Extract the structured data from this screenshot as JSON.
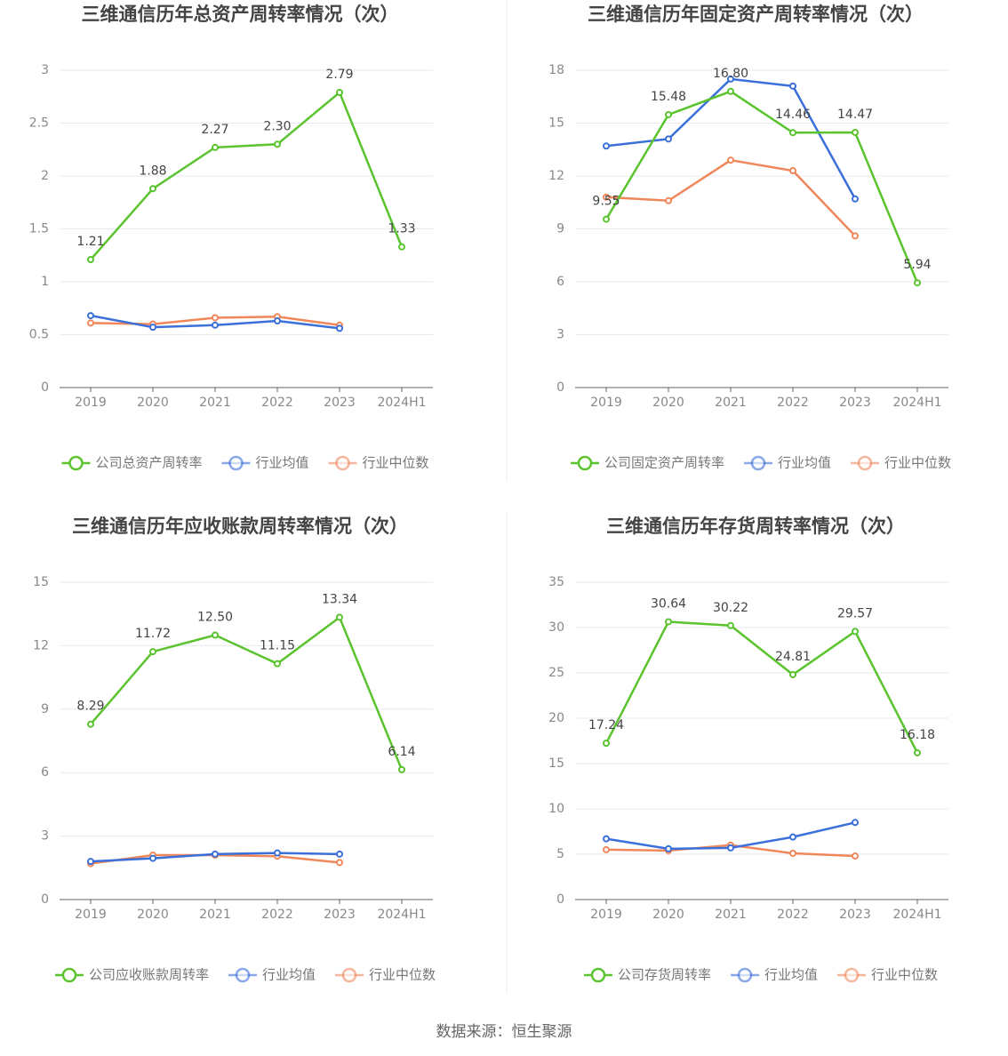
{
  "chart_data": [
    {
      "type": "line",
      "title": "三维通信历年总资产周转率情况（次）",
      "categories": [
        "2019",
        "2020",
        "2021",
        "2022",
        "2023",
        "2024H1"
      ],
      "ylim": [
        0,
        3
      ],
      "yticks": [
        0,
        0.5,
        1,
        1.5,
        2,
        2.5,
        3
      ],
      "grid": true,
      "series": [
        {
          "name": "公司总资产周转率",
          "color": "#5bc32e",
          "values": [
            1.21,
            1.88,
            2.27,
            2.3,
            2.79,
            1.33
          ],
          "value_labels": [
            "1.21",
            "1.88",
            "2.27",
            "2.30",
            "2.79",
            "1.33"
          ]
        },
        {
          "name": "行业均值",
          "color": "#3b6fd9",
          "values": [
            0.68,
            0.57,
            0.59,
            0.63,
            0.56,
            null
          ]
        },
        {
          "name": "行业中位数",
          "color": "#f0875a",
          "values": [
            0.61,
            0.6,
            0.66,
            0.67,
            0.59,
            null
          ]
        }
      ]
    },
    {
      "type": "line",
      "title": "三维通信历年固定资产周转率情况（次）",
      "categories": [
        "2019",
        "2020",
        "2021",
        "2022",
        "2023",
        "2024H1"
      ],
      "ylim": [
        0,
        18
      ],
      "yticks": [
        0,
        3,
        6,
        9,
        12,
        15,
        18
      ],
      "grid": true,
      "series": [
        {
          "name": "公司固定资产周转率",
          "color": "#5bc32e",
          "values": [
            9.55,
            15.48,
            16.8,
            14.46,
            14.47,
            5.94
          ],
          "value_labels": [
            "9.55",
            "15.48",
            "16.80",
            "14.46",
            "14.47",
            "5.94"
          ]
        },
        {
          "name": "行业均值",
          "color": "#3b6fd9",
          "values": [
            13.7,
            14.1,
            17.5,
            17.1,
            10.7,
            null
          ]
        },
        {
          "name": "行业中位数",
          "color": "#f0875a",
          "values": [
            10.8,
            10.6,
            12.9,
            12.3,
            8.6,
            null
          ]
        }
      ]
    },
    {
      "type": "line",
      "title": "三维通信历年应收账款周转率情况（次）",
      "categories": [
        "2019",
        "2020",
        "2021",
        "2022",
        "2023",
        "2024H1"
      ],
      "ylim": [
        0,
        15
      ],
      "yticks": [
        0,
        3,
        6,
        9,
        12,
        15
      ],
      "grid": true,
      "series": [
        {
          "name": "公司应收账款周转率",
          "color": "#5bc32e",
          "values": [
            8.29,
            11.72,
            12.5,
            11.15,
            13.34,
            6.14
          ],
          "value_labels": [
            "8.29",
            "11.72",
            "12.50",
            "11.15",
            "13.34",
            "6.14"
          ]
        },
        {
          "name": "行业均值",
          "color": "#3b6fd9",
          "values": [
            1.8,
            1.95,
            2.15,
            2.2,
            2.15,
            null
          ]
        },
        {
          "name": "行业中位数",
          "color": "#f0875a",
          "values": [
            1.7,
            2.1,
            2.1,
            2.05,
            1.75,
            null
          ]
        }
      ]
    },
    {
      "type": "line",
      "title": "三维通信历年存货周转率情况（次）",
      "categories": [
        "2019",
        "2020",
        "2021",
        "2022",
        "2023",
        "2024H1"
      ],
      "ylim": [
        0,
        35
      ],
      "yticks": [
        0,
        5,
        10,
        15,
        20,
        25,
        30,
        35
      ],
      "grid": true,
      "series": [
        {
          "name": "公司存货周转率",
          "color": "#5bc32e",
          "values": [
            17.24,
            30.64,
            30.22,
            24.81,
            29.57,
            16.18
          ],
          "value_labels": [
            "17.24",
            "30.64",
            "30.22",
            "24.81",
            "29.57",
            "16.18"
          ]
        },
        {
          "name": "行业均值",
          "color": "#3b6fd9",
          "values": [
            6.7,
            5.6,
            5.7,
            6.9,
            8.5,
            null
          ]
        },
        {
          "name": "行业中位数",
          "color": "#f0875a",
          "values": [
            5.5,
            5.4,
            6.0,
            5.1,
            4.8,
            null
          ]
        }
      ]
    }
  ],
  "source": "数据来源：恒生聚源"
}
